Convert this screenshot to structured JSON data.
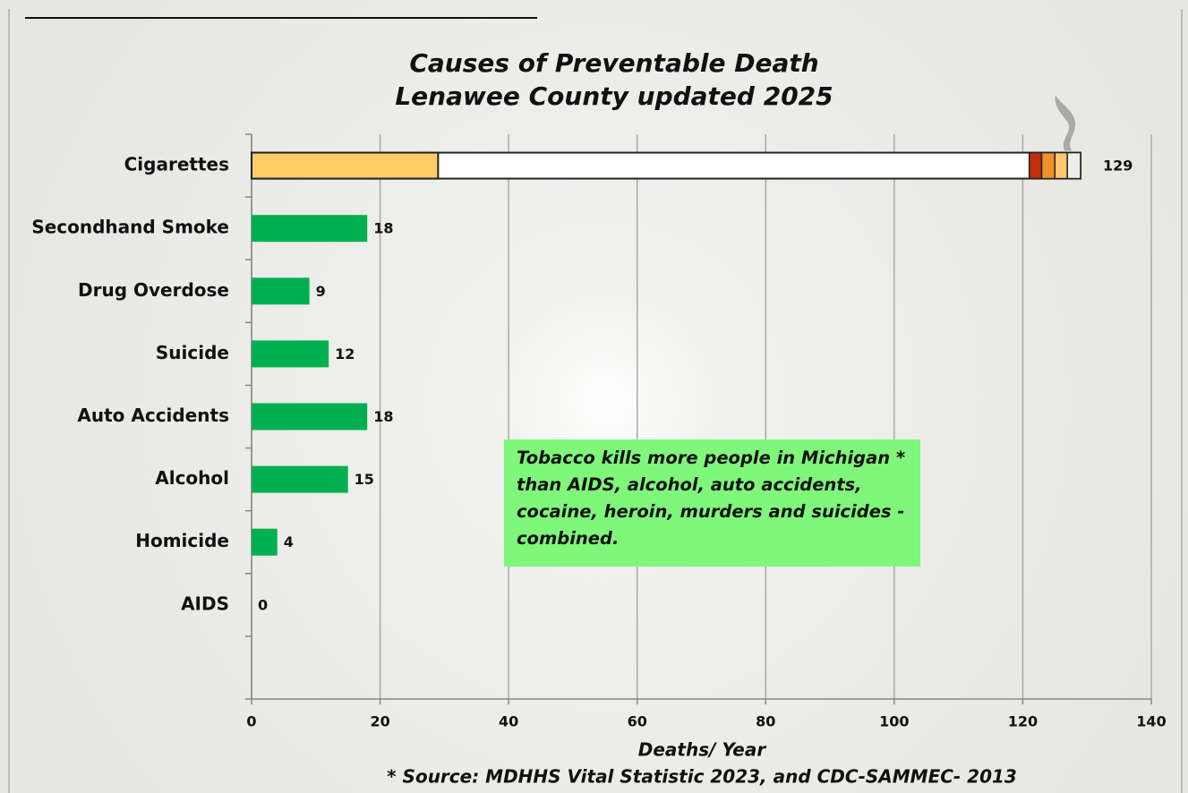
{
  "chart_data": {
    "type": "bar",
    "orientation": "horizontal",
    "title": [
      "Causes of Preventable Death",
      "Lenawee County updated 2025"
    ],
    "categories": [
      "Cigarettes",
      "Secondhand Smoke",
      "Drug Overdose",
      "Suicide",
      "Auto Accidents",
      "Alcohol",
      "Homicide",
      "AIDS",
      null
    ],
    "values": [
      129,
      18,
      9,
      12,
      18,
      15,
      4,
      0,
      null
    ],
    "colors": [
      "#ffffff",
      "#00b050",
      "#00b050",
      "#00b050",
      "#00b050",
      "#00b050",
      "#00b050",
      "#00b050",
      "#00b050"
    ],
    "xlim": [
      0,
      140
    ],
    "xticks": [
      0,
      20,
      40,
      60,
      80,
      100,
      120,
      140
    ],
    "grid": true,
    "x_label": "Deaths/ Year",
    "annotation": "Tobacco kills more people in Michigan * than AIDS, alcohol, auto accidents, cocaine, heroin, murders and suicides - combined.",
    "source": "* Source: MDHHS Vital Statistic 2023, and  CDC-SAMMEC- 2013"
  }
}
